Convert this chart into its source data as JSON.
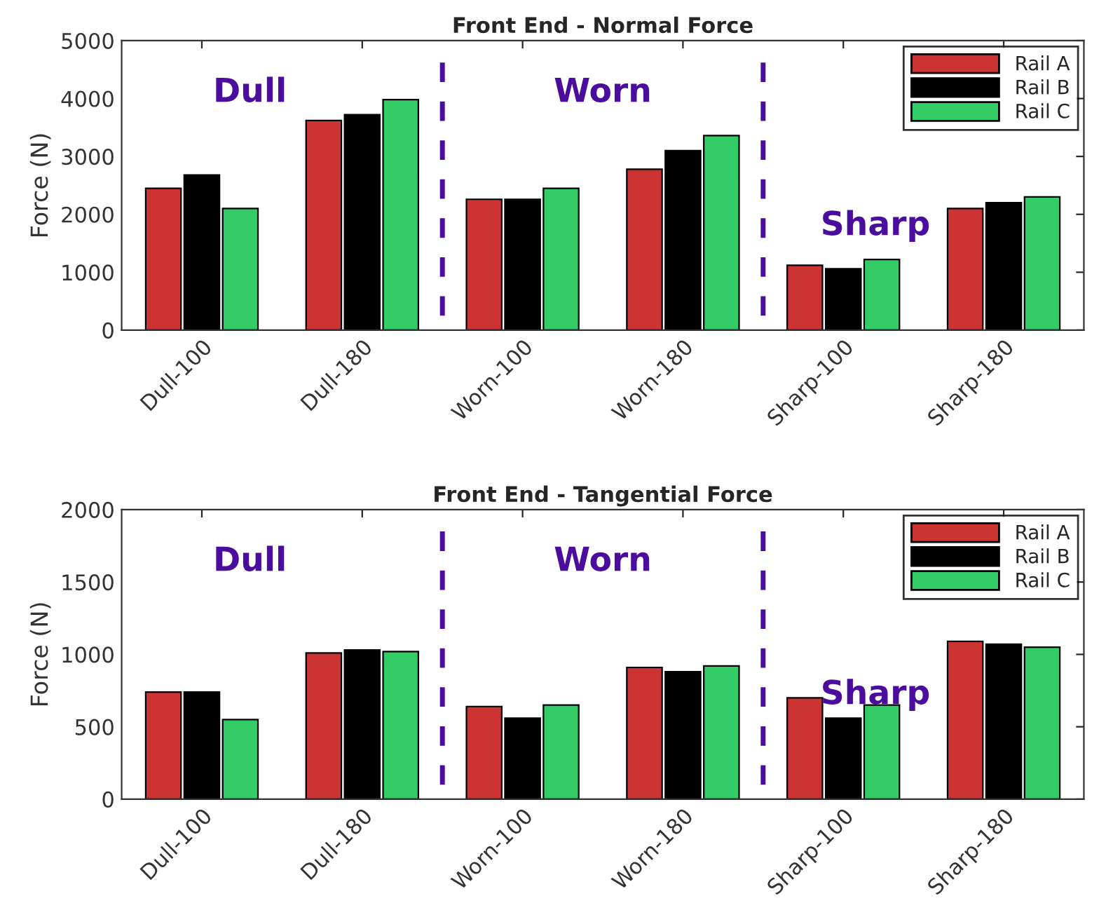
{
  "chart_data": [
    {
      "type": "bar",
      "title": "Front End - Normal Force",
      "ylabel": "Force (N)",
      "categories": [
        "Dull-100",
        "Dull-180",
        "Worn-100",
        "Worn-180",
        "Sharp-100",
        "Sharp-180"
      ],
      "series": [
        {
          "name": "Rail A",
          "color": "#cc3333",
          "values": [
            2450,
            3620,
            2260,
            2780,
            1120,
            2100
          ]
        },
        {
          "name": "Rail B",
          "color": "#000000",
          "values": [
            2680,
            3720,
            2260,
            3100,
            1060,
            2200
          ]
        },
        {
          "name": "Rail C",
          "color": "#33cc66",
          "values": [
            2100,
            3980,
            2450,
            3360,
            1220,
            2300
          ]
        }
      ],
      "ylim": [
        0,
        5000
      ],
      "yticks": [
        0,
        1000,
        2000,
        3000,
        4000,
        5000
      ],
      "annotations": [
        "Dull",
        "Worn",
        "Sharp"
      ],
      "legend": "top right",
      "grid": false
    },
    {
      "type": "bar",
      "title": "Front End - Tangential Force",
      "ylabel": "Force (N)",
      "categories": [
        "Dull-100",
        "Dull-180",
        "Worn-100",
        "Worn-180",
        "Sharp-100",
        "Sharp-180"
      ],
      "series": [
        {
          "name": "Rail A",
          "color": "#cc3333",
          "values": [
            740,
            1010,
            640,
            910,
            700,
            1090
          ]
        },
        {
          "name": "Rail B",
          "color": "#000000",
          "values": [
            740,
            1030,
            560,
            880,
            560,
            1070
          ]
        },
        {
          "name": "Rail C",
          "color": "#33cc66",
          "values": [
            550,
            1020,
            650,
            920,
            650,
            1050
          ]
        }
      ],
      "ylim": [
        0,
        2000
      ],
      "yticks": [
        0,
        500,
        1000,
        1500,
        2000
      ],
      "annotations": [
        "Dull",
        "Worn",
        "Sharp"
      ],
      "legend": "top right",
      "grid": false
    }
  ]
}
